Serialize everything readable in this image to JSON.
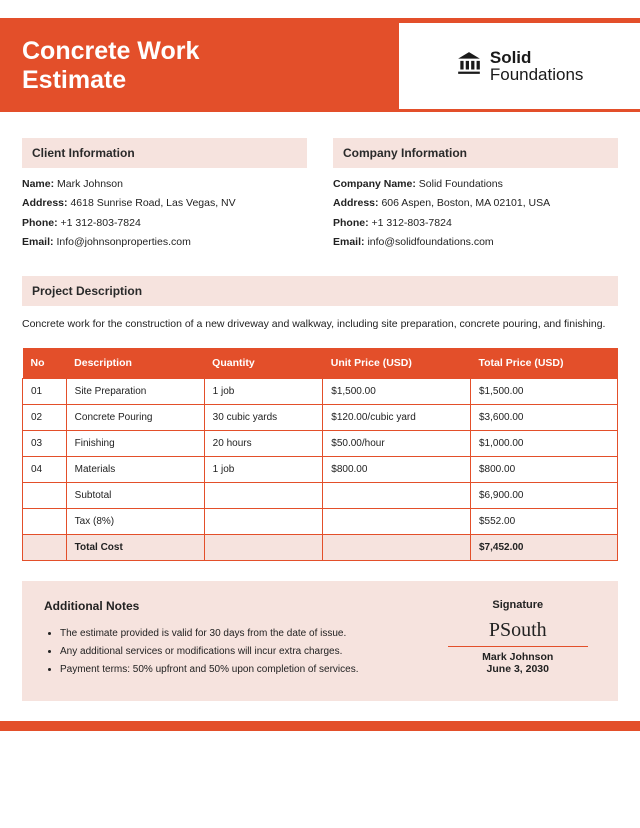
{
  "colors": {
    "accent": "#e34f2a",
    "light": "#f6e3de",
    "text": "#222222",
    "white": "#ffffff"
  },
  "header": {
    "title_line1": "Concrete Work",
    "title_line2": "Estimate",
    "logo_brand": "Solid",
    "logo_sub": "Foundations"
  },
  "client": {
    "heading": "Client Information",
    "name_label": "Name:",
    "name": "Mark Johnson",
    "address_label": "Address:",
    "address": "4618 Sunrise Road, Las Vegas, NV",
    "phone_label": "Phone:",
    "phone": "+1 312-803-7824",
    "email_label": "Email:",
    "email": "Info@johnsonproperties.com"
  },
  "company": {
    "heading": "Company Information",
    "name_label": "Company Name:",
    "name": "Solid Foundations",
    "address_label": "Address:",
    "address": "606 Aspen, Boston, MA 02101, USA",
    "phone_label": "Phone:",
    "phone": "+1 312-803-7824",
    "email_label": "Email:",
    "email": "info@solidfoundations.com"
  },
  "project": {
    "heading": "Project Description",
    "text": "Concrete work for the construction of a new driveway and walkway, including site preparation, concrete pouring, and finishing."
  },
  "table": {
    "headers": {
      "no": "No",
      "desc": "Description",
      "qty": "Quantity",
      "unit": "Unit Price (USD)",
      "total": "Total Price (USD)"
    },
    "rows": [
      {
        "no": "01",
        "desc": "Site Preparation",
        "qty": "1 job",
        "unit": "$1,500.00",
        "total": "$1,500.00"
      },
      {
        "no": "02",
        "desc": "Concrete Pouring",
        "qty": "30 cubic yards",
        "unit": "$120.00/cubic yard",
        "total": "$3,600.00"
      },
      {
        "no": "03",
        "desc": "Finishing",
        "qty": "20 hours",
        "unit": "$50.00/hour",
        "total": "$1,000.00"
      },
      {
        "no": "04",
        "desc": "Materials",
        "qty": "1 job",
        "unit": "$800.00",
        "total": "$800.00"
      }
    ],
    "subtotal_label": "Subtotal",
    "subtotal": "$6,900.00",
    "tax_label": "Tax (8%)",
    "tax": "$552.00",
    "total_label": "Total Cost",
    "total": "$7,452.00"
  },
  "notes": {
    "heading": "Additional Notes",
    "items": [
      "The estimate provided is valid for 30 days from the date of issue.",
      "Any additional services or modifications will incur extra charges.",
      "Payment terms: 50% upfront and 50% upon completion of services."
    ]
  },
  "signature": {
    "heading": "Signature",
    "script": "PSouth",
    "name": "Mark Johnson",
    "date": "June 3, 2030"
  }
}
